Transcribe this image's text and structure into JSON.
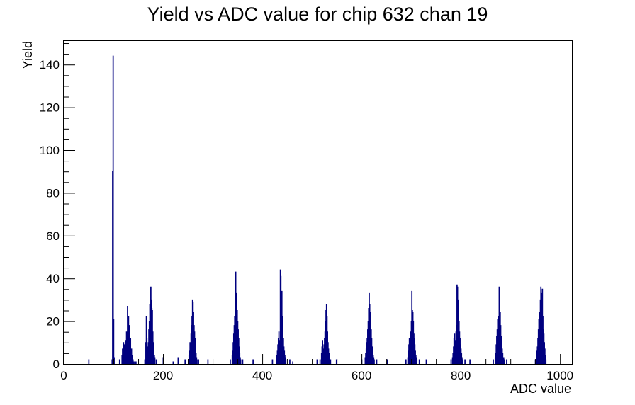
{
  "chart_data": {
    "type": "histogram",
    "title": "Yield vs ADC value for chip 632 chan 19",
    "xlabel": "ADC value",
    "ylabel": "Yield",
    "xlim": [
      0,
      1024
    ],
    "ylim": [
      0,
      151
    ],
    "x_major_ticks": [
      0,
      200,
      400,
      600,
      800,
      1000
    ],
    "y_major_ticks": [
      0,
      20,
      40,
      60,
      80,
      100,
      120,
      140
    ],
    "grid": false,
    "legend": "none",
    "series_color": "#00007f",
    "bin_width": 1,
    "bins": [
      [
        50,
        2
      ],
      [
        97,
        2
      ],
      [
        98,
        90
      ],
      [
        99,
        144
      ],
      [
        100,
        21
      ],
      [
        101,
        3
      ],
      [
        112,
        2
      ],
      [
        117,
        4
      ],
      [
        118,
        7
      ],
      [
        119,
        3
      ],
      [
        120,
        10
      ],
      [
        121,
        5
      ],
      [
        122,
        9
      ],
      [
        123,
        6
      ],
      [
        124,
        11
      ],
      [
        125,
        8
      ],
      [
        126,
        15
      ],
      [
        127,
        10
      ],
      [
        128,
        27
      ],
      [
        129,
        14
      ],
      [
        130,
        22
      ],
      [
        131,
        12
      ],
      [
        132,
        18
      ],
      [
        133,
        9
      ],
      [
        134,
        12
      ],
      [
        135,
        6
      ],
      [
        136,
        7
      ],
      [
        137,
        4
      ],
      [
        138,
        3
      ],
      [
        139,
        2
      ],
      [
        141,
        1
      ],
      [
        145,
        1
      ],
      [
        163,
        2
      ],
      [
        165,
        10
      ],
      [
        166,
        22
      ],
      [
        167,
        12
      ],
      [
        168,
        8
      ],
      [
        169,
        6
      ],
      [
        170,
        10
      ],
      [
        171,
        16
      ],
      [
        172,
        20
      ],
      [
        173,
        28
      ],
      [
        174,
        24
      ],
      [
        175,
        36
      ],
      [
        176,
        30
      ],
      [
        177,
        26
      ],
      [
        178,
        25
      ],
      [
        179,
        15
      ],
      [
        180,
        10
      ],
      [
        181,
        6
      ],
      [
        182,
        4
      ],
      [
        183,
        3
      ],
      [
        186,
        2
      ],
      [
        200,
        3
      ],
      [
        220,
        1
      ],
      [
        230,
        3
      ],
      [
        244,
        2
      ],
      [
        251,
        2
      ],
      [
        252,
        4
      ],
      [
        253,
        6
      ],
      [
        254,
        10
      ],
      [
        255,
        8
      ],
      [
        256,
        14
      ],
      [
        257,
        18
      ],
      [
        258,
        22
      ],
      [
        259,
        30
      ],
      [
        260,
        29
      ],
      [
        261,
        24
      ],
      [
        262,
        18
      ],
      [
        263,
        15
      ],
      [
        264,
        12
      ],
      [
        265,
        8
      ],
      [
        266,
        5
      ],
      [
        267,
        3
      ],
      [
        268,
        2
      ],
      [
        271,
        2
      ],
      [
        290,
        2
      ],
      [
        335,
        2
      ],
      [
        339,
        4
      ],
      [
        340,
        6
      ],
      [
        341,
        10
      ],
      [
        342,
        14
      ],
      [
        343,
        18
      ],
      [
        344,
        22
      ],
      [
        345,
        28
      ],
      [
        346,
        43
      ],
      [
        347,
        30
      ],
      [
        348,
        33
      ],
      [
        349,
        25
      ],
      [
        350,
        20
      ],
      [
        351,
        16
      ],
      [
        352,
        12
      ],
      [
        353,
        8
      ],
      [
        354,
        5
      ],
      [
        355,
        3
      ],
      [
        356,
        2
      ],
      [
        360,
        2
      ],
      [
        381,
        2
      ],
      [
        420,
        2
      ],
      [
        428,
        3
      ],
      [
        429,
        4
      ],
      [
        430,
        6
      ],
      [
        431,
        9
      ],
      [
        432,
        12
      ],
      [
        433,
        15
      ],
      [
        434,
        11
      ],
      [
        435,
        8
      ],
      [
        436,
        44
      ],
      [
        437,
        41
      ],
      [
        438,
        30
      ],
      [
        439,
        34
      ],
      [
        440,
        22
      ],
      [
        441,
        18
      ],
      [
        442,
        12
      ],
      [
        443,
        8
      ],
      [
        444,
        6
      ],
      [
        445,
        4
      ],
      [
        446,
        3
      ],
      [
        447,
        2
      ],
      [
        455,
        2
      ],
      [
        461,
        1
      ],
      [
        510,
        2
      ],
      [
        516,
        2
      ],
      [
        519,
        5
      ],
      [
        520,
        8
      ],
      [
        521,
        11
      ],
      [
        522,
        7
      ],
      [
        523,
        4
      ],
      [
        524,
        9
      ],
      [
        525,
        12
      ],
      [
        526,
        15
      ],
      [
        527,
        20
      ],
      [
        528,
        25
      ],
      [
        529,
        28
      ],
      [
        530,
        22
      ],
      [
        531,
        15
      ],
      [
        532,
        10
      ],
      [
        533,
        7
      ],
      [
        534,
        5
      ],
      [
        535,
        3
      ],
      [
        537,
        2
      ],
      [
        549,
        2
      ],
      [
        600,
        2
      ],
      [
        607,
        3
      ],
      [
        608,
        5
      ],
      [
        609,
        7
      ],
      [
        610,
        10
      ],
      [
        611,
        12
      ],
      [
        612,
        16
      ],
      [
        613,
        20
      ],
      [
        614,
        26
      ],
      [
        615,
        33
      ],
      [
        616,
        28
      ],
      [
        617,
        24
      ],
      [
        618,
        20
      ],
      [
        619,
        16
      ],
      [
        620,
        12
      ],
      [
        621,
        8
      ],
      [
        622,
        6
      ],
      [
        623,
        4
      ],
      [
        624,
        3
      ],
      [
        625,
        2
      ],
      [
        630,
        2
      ],
      [
        651,
        2
      ],
      [
        689,
        2
      ],
      [
        693,
        3
      ],
      [
        694,
        6
      ],
      [
        695,
        9
      ],
      [
        696,
        12
      ],
      [
        697,
        10
      ],
      [
        698,
        15
      ],
      [
        699,
        14
      ],
      [
        700,
        20
      ],
      [
        701,
        34
      ],
      [
        702,
        25
      ],
      [
        703,
        24
      ],
      [
        704,
        20
      ],
      [
        705,
        14
      ],
      [
        706,
        12
      ],
      [
        707,
        9
      ],
      [
        708,
        6
      ],
      [
        709,
        4
      ],
      [
        710,
        3
      ],
      [
        711,
        2
      ],
      [
        716,
        2
      ],
      [
        730,
        2
      ],
      [
        780,
        2
      ],
      [
        783,
        3
      ],
      [
        784,
        5
      ],
      [
        785,
        8
      ],
      [
        786,
        12
      ],
      [
        787,
        14
      ],
      [
        788,
        11
      ],
      [
        789,
        9
      ],
      [
        790,
        15
      ],
      [
        791,
        18
      ],
      [
        792,
        37
      ],
      [
        793,
        36
      ],
      [
        794,
        30
      ],
      [
        795,
        24
      ],
      [
        796,
        20
      ],
      [
        797,
        15
      ],
      [
        798,
        12
      ],
      [
        799,
        9
      ],
      [
        800,
        7
      ],
      [
        801,
        5
      ],
      [
        802,
        3
      ],
      [
        803,
        2
      ],
      [
        808,
        2
      ],
      [
        818,
        2
      ],
      [
        865,
        2
      ],
      [
        869,
        3
      ],
      [
        870,
        5
      ],
      [
        871,
        9
      ],
      [
        872,
        13
      ],
      [
        873,
        16
      ],
      [
        874,
        21
      ],
      [
        875,
        20
      ],
      [
        876,
        22
      ],
      [
        877,
        36
      ],
      [
        878,
        28
      ],
      [
        879,
        24
      ],
      [
        880,
        18
      ],
      [
        881,
        13
      ],
      [
        882,
        10
      ],
      [
        883,
        7
      ],
      [
        884,
        5
      ],
      [
        885,
        3
      ],
      [
        886,
        3
      ],
      [
        887,
        2
      ],
      [
        892,
        2
      ],
      [
        950,
        2
      ],
      [
        952,
        4
      ],
      [
        953,
        6
      ],
      [
        954,
        8
      ],
      [
        955,
        12
      ],
      [
        956,
        16
      ],
      [
        957,
        21
      ],
      [
        958,
        18
      ],
      [
        959,
        24
      ],
      [
        960,
        30
      ],
      [
        961,
        36
      ],
      [
        962,
        33
      ],
      [
        963,
        26
      ],
      [
        964,
        35
      ],
      [
        965,
        22
      ],
      [
        966,
        16
      ],
      [
        967,
        14
      ],
      [
        968,
        10
      ],
      [
        969,
        7
      ],
      [
        970,
        4
      ],
      [
        971,
        2
      ]
    ]
  }
}
